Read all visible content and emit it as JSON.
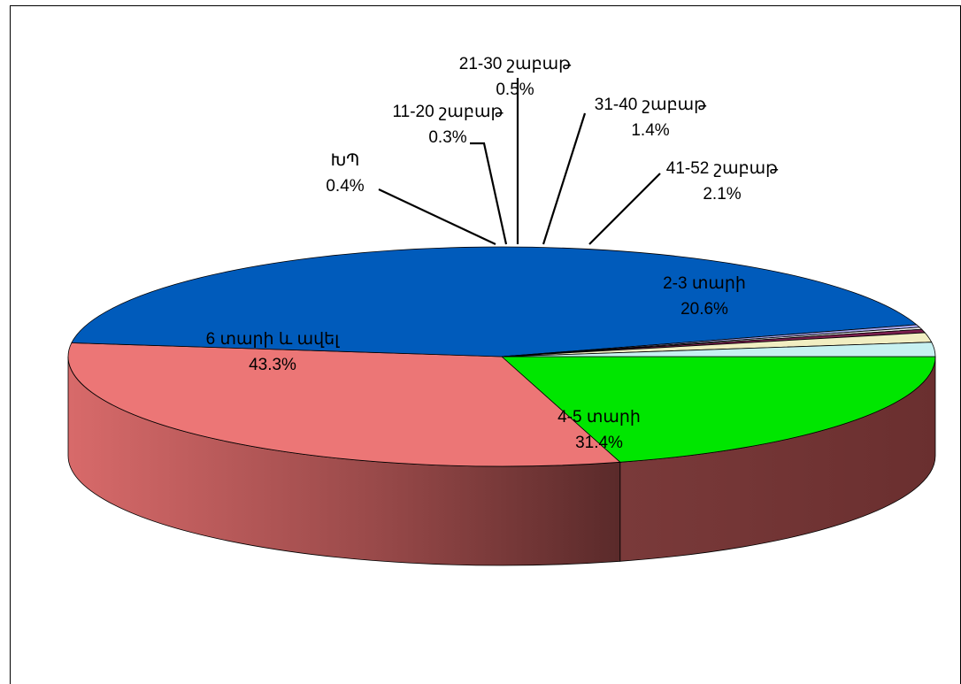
{
  "chart_data": {
    "type": "pie",
    "three_d": true,
    "legend": "none",
    "slices": [
      {
        "label": "2-3 տարի",
        "value": 20.6,
        "value_label": "20.6%",
        "color": "#00e600",
        "side_color": "#009900"
      },
      {
        "label": "4-5 տարի",
        "value": 31.4,
        "value_label": "31.4%",
        "color": "#ec7676",
        "side_color": "#c95f5f"
      },
      {
        "label": "6 տարի և ավել",
        "value": 43.3,
        "value_label": "43.3%",
        "color": "#005bbb",
        "side_color": "#0058b8"
      },
      {
        "label": "ԽՊ",
        "value": 0.4,
        "value_label": "0.4%",
        "color": "#a6a6ee",
        "side_color": "#7b7bc2"
      },
      {
        "label": "11-20 շաբաթ",
        "value": 0.3,
        "value_label": "0.3%",
        "color": "#f2f2f2",
        "side_color": "#c8c8c8"
      },
      {
        "label": "21-30 շաբաթ",
        "value": 0.5,
        "value_label": "0.5%",
        "color": "#7a1f4e",
        "side_color": "#5a1238"
      },
      {
        "label": "31-40 շաբաթ",
        "value": 1.4,
        "value_label": "1.4%",
        "color": "#f1eec2",
        "side_color": "#cfcc9e"
      },
      {
        "label": "41-52 շաբաթ",
        "value": 2.1,
        "value_label": "2.1%",
        "color": "#c7f1f1",
        "side_color": "#a2cdcd"
      }
    ]
  }
}
